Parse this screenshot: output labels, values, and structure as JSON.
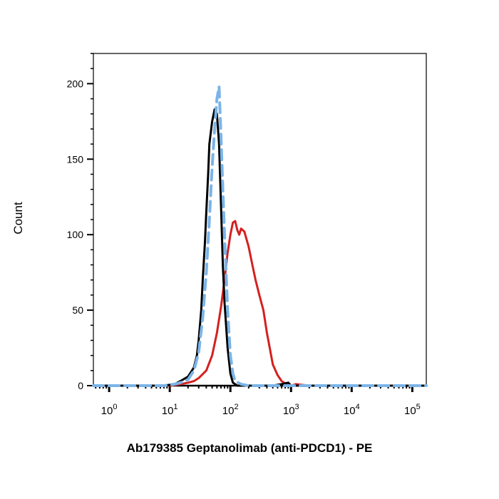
{
  "chart_data": {
    "type": "line",
    "title": "",
    "xlabel": "Ab179385 Geptanolimab (anti-PDCD1) - PE",
    "ylabel": "Count",
    "xscale": "log",
    "xlim": [
      0.55,
      170000
    ],
    "ylim": [
      0,
      220
    ],
    "x_ticks": [
      {
        "value": 1,
        "base": "10",
        "exp": "0"
      },
      {
        "value": 10,
        "base": "10",
        "exp": "1"
      },
      {
        "value": 100,
        "base": "10",
        "exp": "2"
      },
      {
        "value": 1000,
        "base": "10",
        "exp": "3"
      },
      {
        "value": 10000,
        "base": "10",
        "exp": "4"
      },
      {
        "value": 100000,
        "base": "10",
        "exp": "5"
      }
    ],
    "y_ticks": [
      0,
      50,
      100,
      150,
      200
    ],
    "grid": false,
    "legend": "none",
    "series": [
      {
        "color": "#d42020",
        "style": "solid",
        "x": [
          0.55,
          5,
          10,
          15,
          20,
          25,
          30,
          40,
          50,
          60,
          70,
          80,
          90,
          100,
          110,
          120,
          130,
          140,
          150,
          170,
          200,
          230,
          260,
          300,
          350,
          400,
          450,
          500,
          600,
          700,
          800,
          900,
          1000,
          1200,
          1500,
          2000,
          5000,
          170000
        ],
        "y": [
          0,
          0,
          0,
          1,
          2,
          3,
          5,
          10,
          20,
          35,
          52,
          70,
          88,
          100,
          108,
          109,
          103,
          100,
          104,
          102,
          92,
          80,
          70,
          60,
          50,
          35,
          24,
          14,
          7,
          3,
          1.5,
          0.5,
          0,
          1,
          0.5,
          0,
          0,
          0
        ]
      },
      {
        "color": "#000000",
        "style": "solid",
        "x": [
          0.55,
          8,
          12,
          15,
          20,
          25,
          28,
          30,
          33,
          35,
          38,
          40,
          43,
          45,
          50,
          55,
          60,
          65,
          70,
          75,
          80,
          90,
          100,
          110,
          130,
          150,
          200,
          300,
          500,
          700,
          900,
          1000,
          170000
        ],
        "y": [
          0,
          0,
          1,
          3,
          6,
          12,
          20,
          30,
          50,
          70,
          95,
          115,
          140,
          160,
          175,
          183,
          180,
          160,
          120,
          80,
          55,
          25,
          8,
          2,
          0,
          0,
          0,
          0,
          0,
          1,
          2,
          0,
          0
        ]
      },
      {
        "color": "#7ab4e8",
        "style": "dashed",
        "x": [
          0.55,
          8,
          12,
          15,
          20,
          25,
          30,
          35,
          40,
          45,
          50,
          55,
          60,
          65,
          70,
          75,
          80,
          90,
          100,
          110,
          120,
          150,
          200,
          300,
          400,
          500,
          170000
        ],
        "y": [
          0,
          0,
          1,
          2,
          4,
          10,
          22,
          45,
          75,
          110,
          145,
          170,
          190,
          198,
          165,
          130,
          100,
          50,
          20,
          8,
          3,
          1,
          0,
          0,
          0,
          0,
          0
        ]
      }
    ]
  }
}
